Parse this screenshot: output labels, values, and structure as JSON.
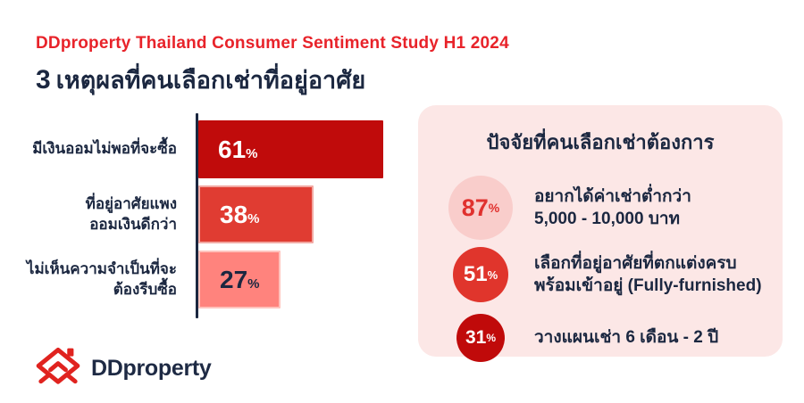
{
  "header": {
    "subtitle": "DDproperty Thailand Consumer Sentiment Study H1 2024",
    "title_number": "3",
    "title_text": "เหตุผลที่คนเลือกเช่าที่อยู่อาศัย"
  },
  "chart_data": {
    "type": "bar",
    "orientation": "horizontal",
    "categories": [
      "มีเงินออมไม่พอที่จะซื้อ",
      "ที่อยู่อาศัยแพง ออมเงินดีกว่า",
      "ไม่เห็นความจำเป็นที่จะ ต้องรีบซื้อ"
    ],
    "category_lines": [
      [
        "มีเงินออมไม่พอที่จะซื้อ"
      ],
      [
        "ที่อยู่อาศัยแพง",
        "ออมเงินดีกว่า"
      ],
      [
        "ไม่เห็นความจำเป็นที่จะ",
        "ต้องรีบซื้อ"
      ]
    ],
    "values": [
      61,
      38,
      27
    ],
    "unit": "%",
    "xlim": [
      0,
      65
    ],
    "grid": false,
    "legend": false,
    "axis_color": "#1b2740",
    "bar_colors": [
      "#c00b0b",
      "#e03c32",
      "#ff837d"
    ],
    "bar_border_colors": [
      "none",
      "#f2a8a2",
      "#ffc3bd"
    ],
    "value_label_colors": [
      "#ffffff",
      "#ffffff",
      "#1b2740"
    ]
  },
  "panel": {
    "title": "ปัจจัยที่คนเลือกเช่าต้องการ",
    "background": "#fce7e6",
    "items": [
      {
        "value": "87",
        "unit": "%",
        "circle_bg": "#f9cdcb",
        "circle_text_color": "#e0312e",
        "lines": [
          "อยากได้ค่าเช่าต่ำกว่า",
          "5,000 - 10,000 บาท"
        ]
      },
      {
        "value": "51",
        "unit": "%",
        "circle_bg": "#e0352c",
        "circle_text_color": "#ffffff",
        "lines": [
          "เลือกที่อยู่อาศัยที่ตกแต่งครบ",
          "พร้อมเข้าอยู่ (Fully-furnished)"
        ]
      },
      {
        "value": "31",
        "unit": "%",
        "circle_bg": "#c00a0a",
        "circle_text_color": "#ffffff",
        "lines": [
          "วางแผนเช่า 6 เดือน - 2 ปี"
        ]
      }
    ]
  },
  "footer": {
    "logo_text": "DDproperty",
    "logo_icon": "ddproperty-house-chevrons",
    "logo_icon_color": "#e0231f"
  }
}
